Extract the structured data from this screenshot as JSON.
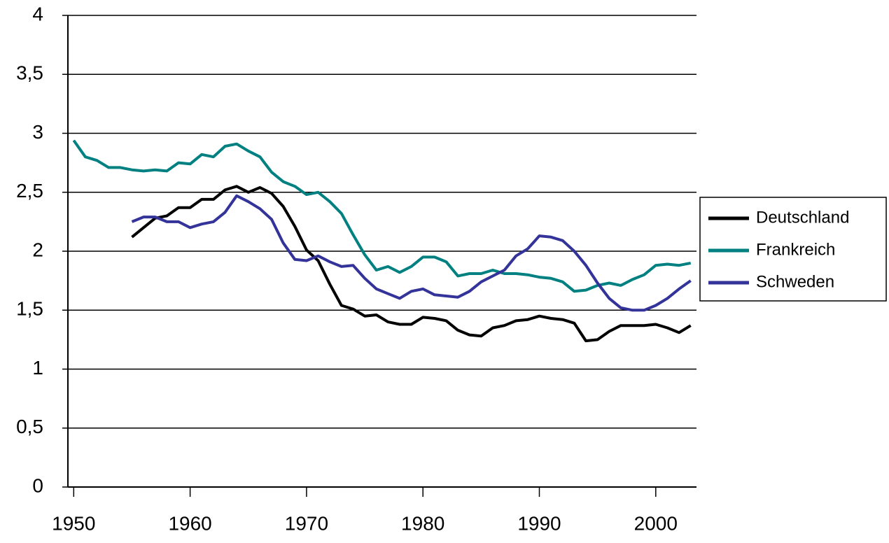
{
  "chart_data": {
    "type": "line",
    "x": [
      1950,
      1951,
      1952,
      1953,
      1954,
      1955,
      1956,
      1957,
      1958,
      1959,
      1960,
      1961,
      1962,
      1963,
      1964,
      1965,
      1966,
      1967,
      1968,
      1969,
      1970,
      1971,
      1972,
      1973,
      1974,
      1975,
      1976,
      1977,
      1978,
      1979,
      1980,
      1981,
      1982,
      1983,
      1984,
      1985,
      1986,
      1987,
      1988,
      1989,
      1990,
      1991,
      1992,
      1993,
      1994,
      1995,
      1996,
      1997,
      1998,
      1999,
      2000,
      2001,
      2002,
      2003
    ],
    "series": [
      {
        "name": "Deutschland",
        "color": "#000000",
        "values": [
          null,
          null,
          null,
          null,
          null,
          2.12,
          2.2,
          2.28,
          2.3,
          2.37,
          2.37,
          2.44,
          2.44,
          2.52,
          2.55,
          2.5,
          2.54,
          2.49,
          2.38,
          2.21,
          2.01,
          1.92,
          1.72,
          1.54,
          1.51,
          1.45,
          1.46,
          1.4,
          1.38,
          1.38,
          1.44,
          1.43,
          1.41,
          1.33,
          1.29,
          1.28,
          1.35,
          1.37,
          1.41,
          1.42,
          1.45,
          1.43,
          1.42,
          1.39,
          1.24,
          1.25,
          1.32,
          1.37,
          1.37,
          1.37,
          1.38,
          1.35,
          1.31,
          1.37
        ]
      },
      {
        "name": "Frankreich",
        "color": "#008080",
        "values": [
          2.94,
          2.8,
          2.77,
          2.71,
          2.71,
          2.69,
          2.68,
          2.69,
          2.68,
          2.75,
          2.74,
          2.82,
          2.8,
          2.89,
          2.91,
          2.85,
          2.8,
          2.67,
          2.59,
          2.55,
          2.48,
          2.5,
          2.42,
          2.32,
          2.14,
          1.97,
          1.84,
          1.87,
          1.82,
          1.87,
          1.95,
          1.95,
          1.91,
          1.79,
          1.81,
          1.81,
          1.84,
          1.81,
          1.81,
          1.8,
          1.78,
          1.77,
          1.74,
          1.66,
          1.67,
          1.71,
          1.73,
          1.71,
          1.76,
          1.8,
          1.88,
          1.89,
          1.88,
          1.9
        ]
      },
      {
        "name": "Schweden",
        "color": "#333399",
        "values": [
          null,
          null,
          null,
          null,
          null,
          2.25,
          2.29,
          2.29,
          2.25,
          2.25,
          2.2,
          2.23,
          2.25,
          2.33,
          2.47,
          2.42,
          2.36,
          2.27,
          2.07,
          1.93,
          1.92,
          1.96,
          1.91,
          1.87,
          1.88,
          1.77,
          1.68,
          1.64,
          1.6,
          1.66,
          1.68,
          1.63,
          1.62,
          1.61,
          1.66,
          1.74,
          1.79,
          1.84,
          1.96,
          2.02,
          2.13,
          2.12,
          2.09,
          2.0,
          1.88,
          1.73,
          1.6,
          1.52,
          1.5,
          1.5,
          1.54,
          1.6,
          1.68,
          1.75
        ]
      }
    ],
    "xlim": [
      1949.5,
      2003.5
    ],
    "xticks": [
      1950,
      1960,
      1970,
      1980,
      1990,
      2000
    ],
    "ylim": [
      0,
      4
    ],
    "yticks": [
      0,
      {
        "value": 0.5,
        "label": "0,5"
      },
      1,
      {
        "value": 1.5,
        "label": "1,5"
      },
      2,
      {
        "value": 2.5,
        "label": "2,5"
      },
      3,
      {
        "value": 3.5,
        "label": "3,5"
      },
      4
    ],
    "grid": true,
    "legend": "right"
  }
}
